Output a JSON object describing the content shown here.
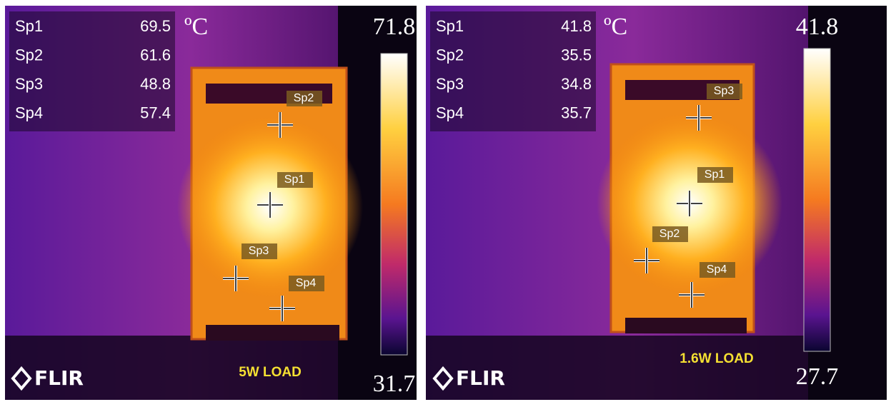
{
  "panels": [
    {
      "spots": [
        {
          "name": "Sp1",
          "value": "69.5"
        },
        {
          "name": "Sp2",
          "value": "61.6"
        },
        {
          "name": "Sp3",
          "value": "48.8"
        },
        {
          "name": "Sp4",
          "value": "57.4"
        }
      ],
      "unit": "ºC",
      "scale_max": "71.8",
      "scale_min": "31.7",
      "load": "5W LOAD",
      "logo": "FLIR"
    },
    {
      "spots": [
        {
          "name": "Sp1",
          "value": "41.8"
        },
        {
          "name": "Sp2",
          "value": "35.5"
        },
        {
          "name": "Sp3",
          "value": "34.8"
        },
        {
          "name": "Sp4",
          "value": "35.7"
        }
      ],
      "unit": "ºC",
      "scale_max": "41.8",
      "scale_min": "27.7",
      "load": "1.6W LOAD",
      "logo": "FLIR"
    }
  ]
}
